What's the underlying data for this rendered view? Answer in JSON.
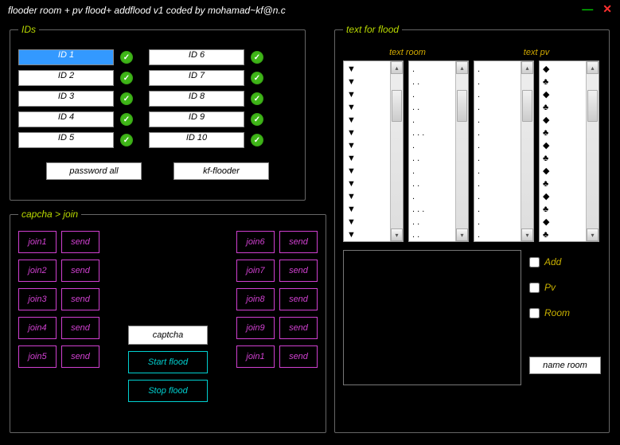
{
  "window": {
    "title": "flooder room + pv flood+ addflood v1 coded by mohamad~kf@n.c"
  },
  "ids": {
    "legend": "IDs",
    "left": [
      {
        "v": "ID 1",
        "sel": true
      },
      {
        "v": "ID 2"
      },
      {
        "v": "ID 3"
      },
      {
        "v": "ID 4"
      },
      {
        "v": "ID 5"
      }
    ],
    "right": [
      {
        "v": "ID 6"
      },
      {
        "v": "ID 7"
      },
      {
        "v": "ID 8"
      },
      {
        "v": "ID 9"
      },
      {
        "v": "ID 10"
      }
    ],
    "password_all": "password all",
    "kf_flooder": "kf-flooder"
  },
  "captcha": {
    "legend": "capcha > join",
    "left": [
      {
        "j": "join1",
        "s": "send"
      },
      {
        "j": "join2",
        "s": "send"
      },
      {
        "j": "join3",
        "s": "send"
      },
      {
        "j": "join4",
        "s": "send"
      },
      {
        "j": "join5",
        "s": "send"
      }
    ],
    "right": [
      {
        "j": "join6",
        "s": "send"
      },
      {
        "j": "join7",
        "s": "send"
      },
      {
        "j": "join8",
        "s": "send"
      },
      {
        "j": "join9",
        "s": "send"
      },
      {
        "j": "join1",
        "s": "send"
      }
    ],
    "captcha_label": "captcha",
    "start": "Start flood",
    "stop": "Stop flood"
  },
  "flood": {
    "legend": "text for flood",
    "label_room": "text room",
    "label_pv": "text pv",
    "room_a": [
      "▼",
      "▼",
      "▼",
      "▼",
      "▼",
      "▼",
      "▼",
      "▼",
      "▼",
      "▼",
      "▼",
      "▼",
      "▼",
      "▼"
    ],
    "room_b": [
      ".",
      ". .",
      ".",
      ". .",
      ".",
      ". . .",
      ".",
      ". .",
      ".",
      ". .",
      " .",
      ". . .",
      ". .",
      ". ."
    ],
    "pv_a": [
      " .",
      ".",
      " .",
      ".",
      " .",
      ".",
      " .",
      ".",
      " .",
      ".",
      " .",
      ".",
      " .",
      "."
    ],
    "pv_b": [
      "◆",
      "♣",
      "◆",
      "♣",
      "◆",
      "♣",
      "◆",
      "♣",
      "◆",
      "♣",
      "◆",
      "♣",
      "◆",
      "♣"
    ],
    "opt_add": "Add",
    "opt_pv": "Pv",
    "opt_room": "Room",
    "name_room": "name room"
  },
  "colors": {
    "legend": "#b8d800",
    "magenta": "#d040d0",
    "cyan": "#00d0d0",
    "gold": "#c8b000",
    "check": "#3fb618"
  }
}
